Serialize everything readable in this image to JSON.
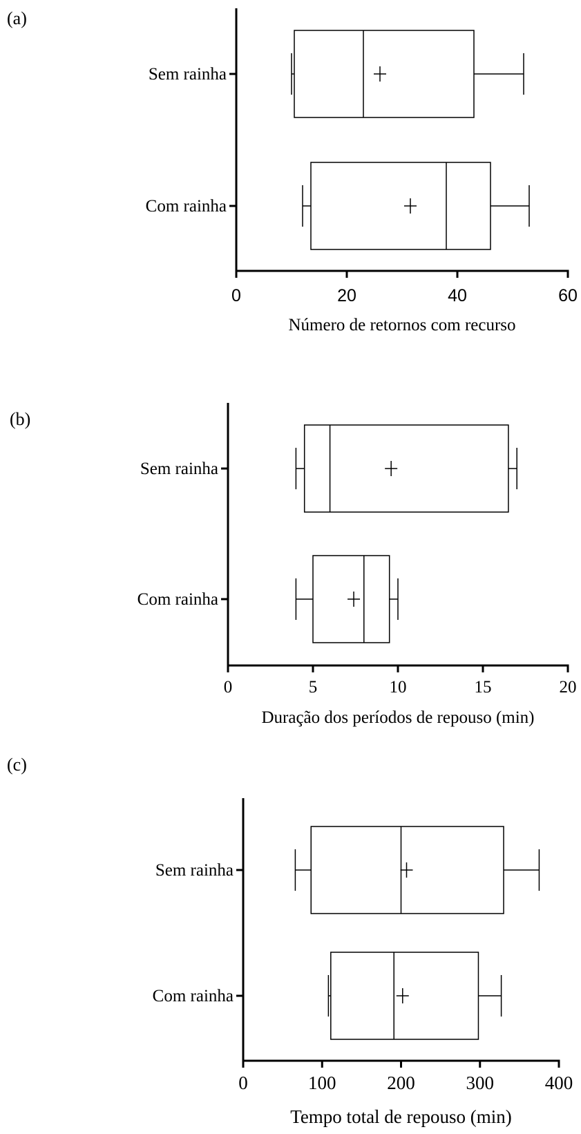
{
  "chart_data": [
    {
      "type": "boxplot",
      "panel_label": "(a)",
      "xlabel": "Número de retornos com recurso",
      "xlim": [
        0,
        60
      ],
      "xticks": [
        0,
        20,
        40,
        60
      ],
      "categories": [
        "Sem rainha",
        "Com rainha"
      ],
      "boxes": [
        {
          "name": "Sem rainha",
          "min": 10,
          "q1": 10.5,
          "median": 23,
          "q3": 43,
          "max": 52,
          "mean": 26
        },
        {
          "name": "Com rainha",
          "min": 12,
          "q1": 13.5,
          "median": 38,
          "q3": 46,
          "max": 53,
          "mean": 31.5
        }
      ]
    },
    {
      "type": "boxplot",
      "panel_label": "(b)",
      "xlabel": "Duração dos  períodos de repouso (min)",
      "xlim": [
        0,
        20
      ],
      "xticks": [
        0,
        5,
        10,
        15,
        20
      ],
      "categories": [
        "Sem rainha",
        "Com rainha"
      ],
      "boxes": [
        {
          "name": "Sem rainha",
          "min": 4,
          "q1": 4.5,
          "median": 6,
          "q3": 16.5,
          "max": 17,
          "mean": 9.6
        },
        {
          "name": "Com rainha",
          "min": 4,
          "q1": 5,
          "median": 8,
          "q3": 9.5,
          "max": 10,
          "mean": 7.4
        }
      ]
    },
    {
      "type": "boxplot",
      "panel_label": "(c)",
      "xlabel": "Tempo total de  repouso (min)",
      "xlim": [
        0,
        400
      ],
      "xticks": [
        0,
        100,
        200,
        300,
        400
      ],
      "categories": [
        "Sem rainha",
        "Com rainha"
      ],
      "boxes": [
        {
          "name": "Sem rainha",
          "min": 66,
          "q1": 86,
          "median": 200,
          "q3": 330,
          "max": 375,
          "mean": 207
        },
        {
          "name": "Com rainha",
          "min": 108,
          "q1": 111,
          "median": 191,
          "q3": 298,
          "max": 327,
          "mean": 202
        }
      ]
    }
  ]
}
